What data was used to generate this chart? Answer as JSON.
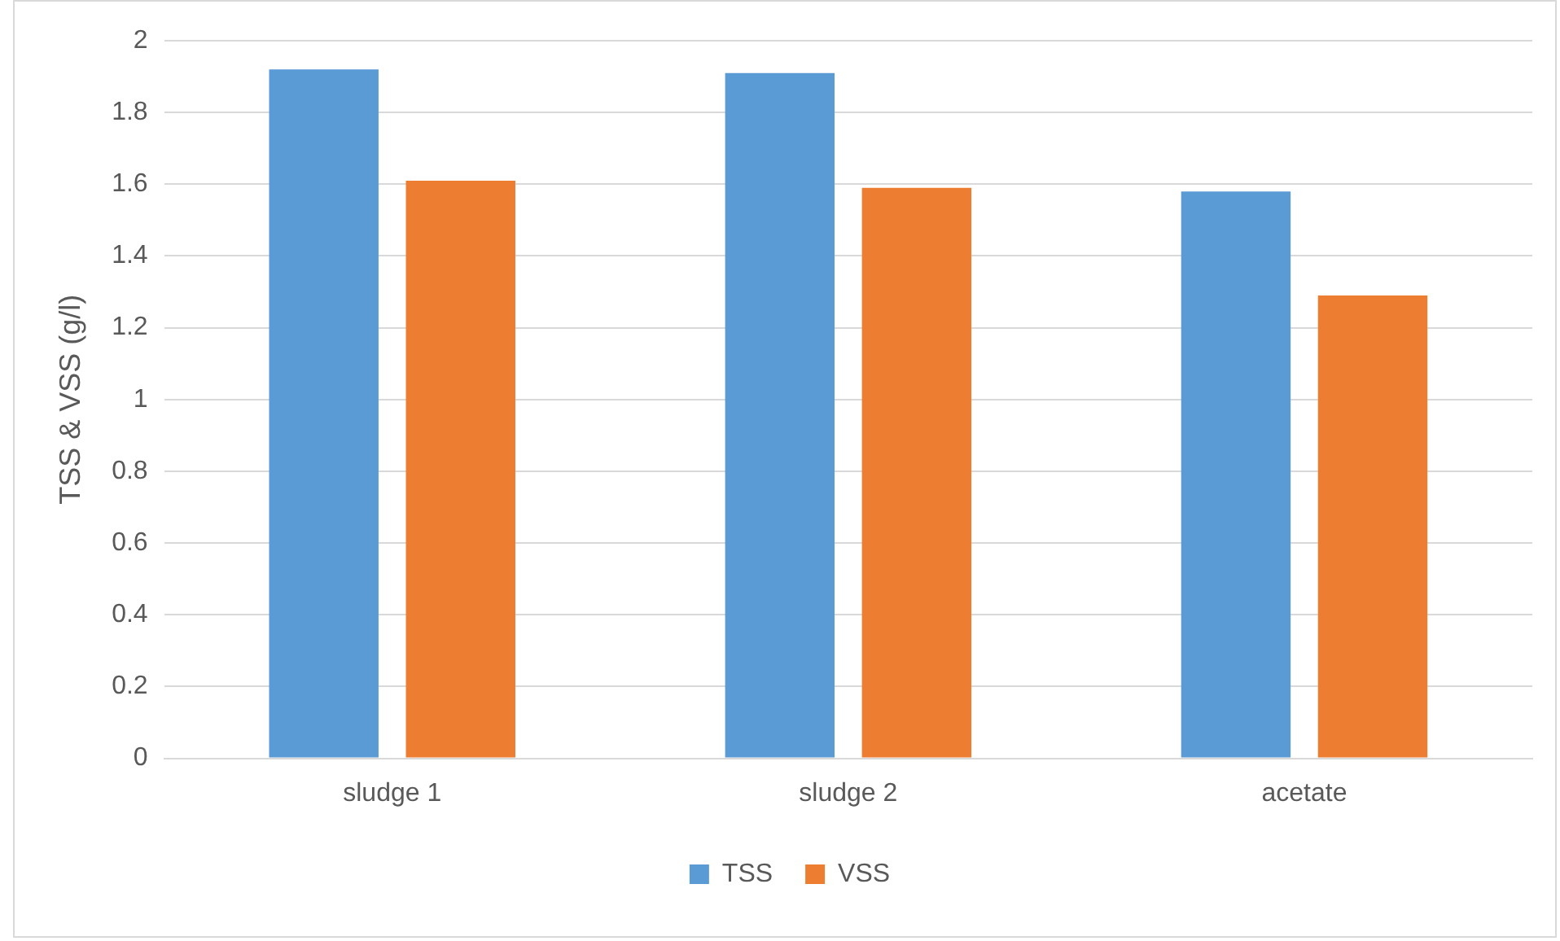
{
  "chart_data": {
    "type": "bar",
    "ylabel": "TSS & VSS (g/l)",
    "categories": [
      "sludge 1",
      "sludge 2",
      "acetate"
    ],
    "series": [
      {
        "name": "TSS",
        "color": "#5b9bd5",
        "values": [
          1.92,
          1.91,
          1.58
        ]
      },
      {
        "name": "VSS",
        "color": "#ed7d31",
        "values": [
          1.61,
          1.59,
          1.29
        ]
      }
    ],
    "ylim": [
      0,
      2
    ],
    "yticks": [
      0,
      0.2,
      0.4,
      0.6,
      0.8,
      1,
      1.2,
      1.4,
      1.6,
      1.8,
      2
    ],
    "grid": "y",
    "legend": "bottom"
  }
}
